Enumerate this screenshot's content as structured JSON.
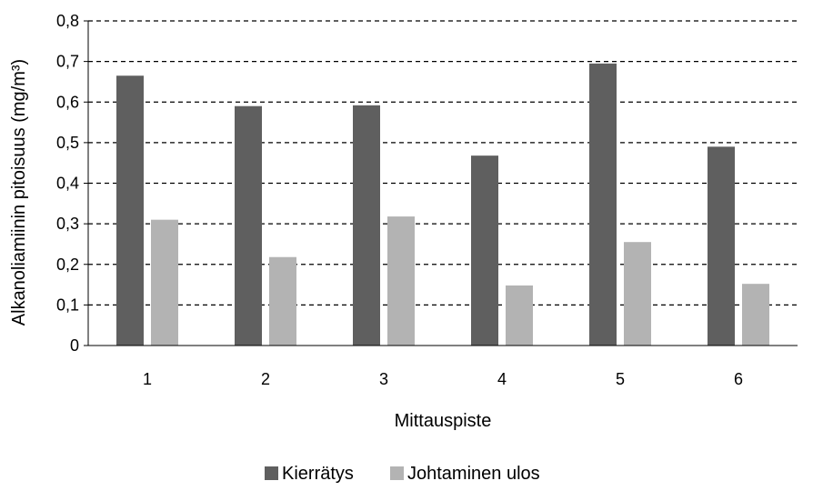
{
  "chart_data": {
    "type": "bar",
    "categories": [
      "1",
      "2",
      "3",
      "4",
      "5",
      "6"
    ],
    "series": [
      {
        "name": "Kierrätys",
        "values": [
          0.665,
          0.59,
          0.592,
          0.468,
          0.695,
          0.49
        ],
        "color": "#5f5f5f"
      },
      {
        "name": "Johtaminen ulos",
        "values": [
          0.31,
          0.218,
          0.318,
          0.148,
          0.255,
          0.152
        ],
        "color": "#b3b3b3"
      }
    ],
    "title": "",
    "xlabel": "Mittauspiste",
    "ylabel": "Alkanoliamiinin pitoisuus (mg/m³)",
    "ylim": [
      0,
      0.8
    ],
    "yticks": [
      "0",
      "0,1",
      "0,2",
      "0,3",
      "0,4",
      "0,5",
      "0,6",
      "0,7",
      "0,8"
    ],
    "grid": true,
    "grid_style": "dashed",
    "legend_position": "bottom"
  }
}
